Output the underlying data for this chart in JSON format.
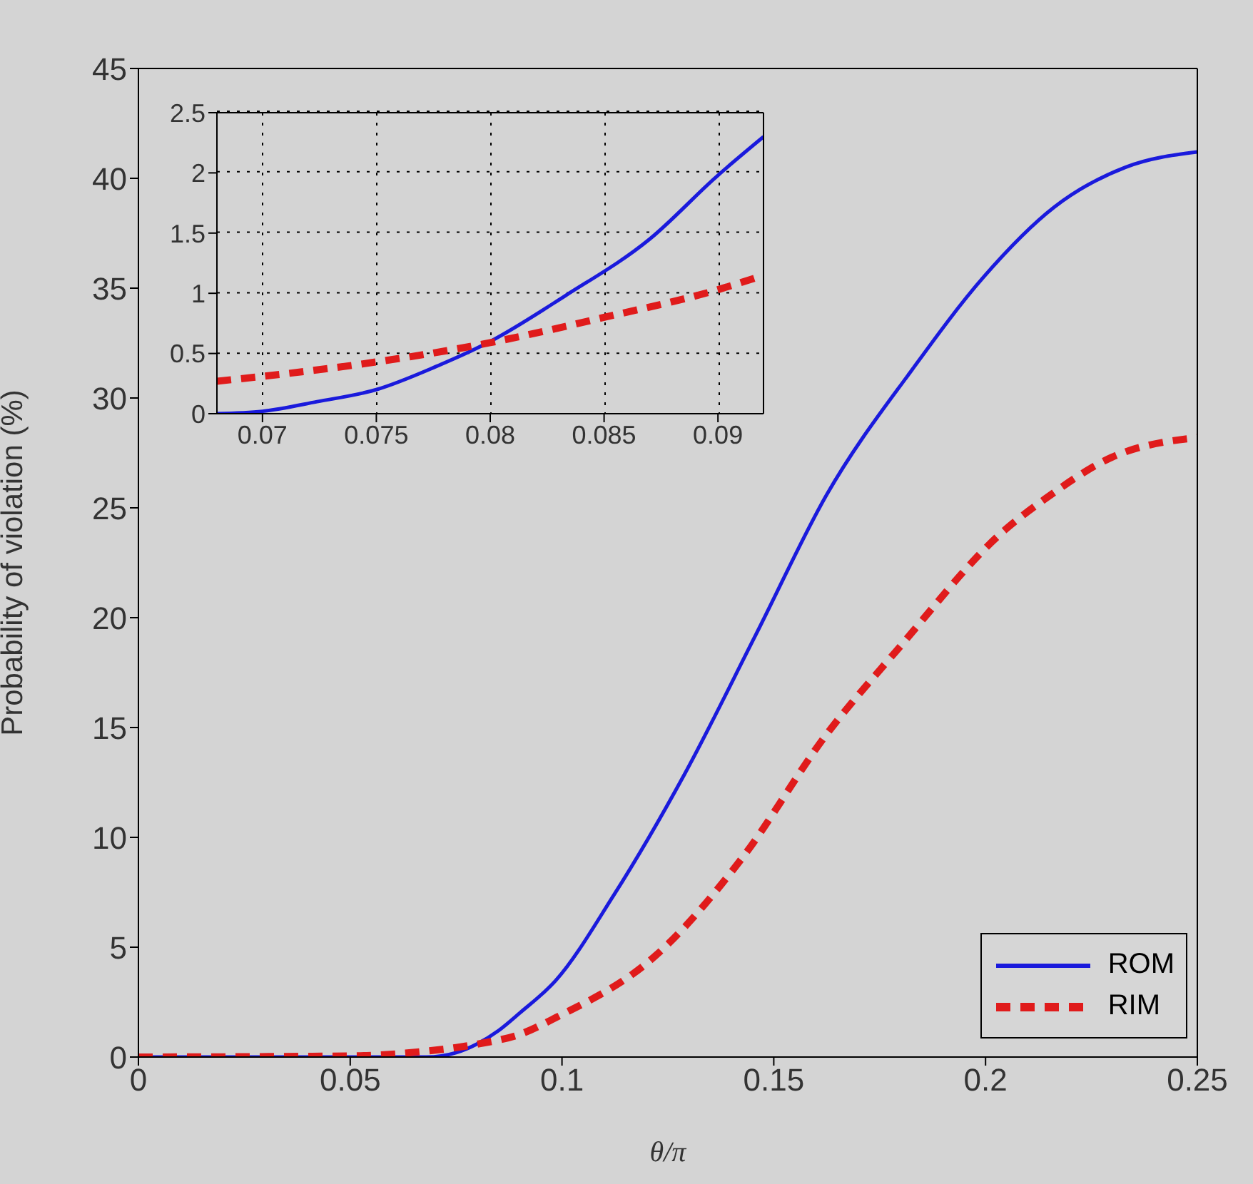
{
  "chart_data": [
    {
      "type": "line",
      "xlabel": "θ/π",
      "ylabel": "Probability of violation (%)",
      "xlim": [
        0,
        0.25
      ],
      "xticks": [
        0,
        0.05,
        0.1,
        0.15,
        0.2,
        0.25
      ],
      "ylim": [
        0,
        45
      ],
      "yticks": [
        0,
        5,
        10,
        15,
        20,
        25,
        30,
        35,
        40,
        45
      ],
      "grid": false,
      "legend": "bottom right",
      "marker": "none",
      "series": [
        {
          "name": "ROM",
          "color": "#1a1adc",
          "line_style": "solid",
          "x": [
            0,
            0.05,
            0.068,
            0.075,
            0.08,
            0.085,
            0.09,
            0.0986,
            0.112,
            0.129,
            0.1457,
            0.1625,
            0.1827,
            0.1995,
            0.2163,
            0.233,
            0.25
          ],
          "values": [
            0,
            0,
            0,
            0.2,
            0.6,
            1.2,
            2,
            3.5,
            7.3,
            12.9,
            19.2,
            25.6,
            31.3,
            35.5,
            38.7,
            40.5,
            41.2
          ]
        },
        {
          "name": "RIM",
          "color": "#e01b1b",
          "line_style": "dashed",
          "x": [
            0,
            0.05,
            0.068,
            0.075,
            0.08,
            0.09,
            0.0986,
            0.122,
            0.1423,
            0.1625,
            0.179,
            0.2046,
            0.214,
            0.2298,
            0.25
          ],
          "values": [
            0,
            0.05,
            0.27,
            0.43,
            0.59,
            1.03,
            1.8,
            4.6,
            9,
            14.7,
            18.5,
            24,
            25.4,
            27.3,
            28.2
          ]
        }
      ]
    },
    {
      "type": "line",
      "xlim": [
        0.068,
        0.092
      ],
      "xticks": [
        0.07,
        0.075,
        0.08,
        0.085,
        0.09
      ],
      "ylim": [
        0,
        2.5
      ],
      "yticks": [
        0,
        0.5,
        1,
        1.5,
        2,
        2.5
      ],
      "grid": true,
      "marker": "none",
      "series": [
        {
          "color": "#1a1adc",
          "line_style": "solid",
          "x": [
            0.068,
            0.07,
            0.0724,
            0.075,
            0.0776,
            0.08,
            0.0833,
            0.087,
            0.09,
            0.092
          ],
          "values": [
            0,
            0.02,
            0.1,
            0.2,
            0.39,
            0.6,
            0.98,
            1.45,
            1.98,
            2.3
          ]
        },
        {
          "color": "#e01b1b",
          "line_style": "dashed",
          "x": [
            0.068,
            0.07,
            0.075,
            0.08,
            0.085,
            0.09,
            0.092
          ],
          "values": [
            0.27,
            0.31,
            0.43,
            0.59,
            0.8,
            1.03,
            1.15
          ]
        }
      ]
    }
  ]
}
